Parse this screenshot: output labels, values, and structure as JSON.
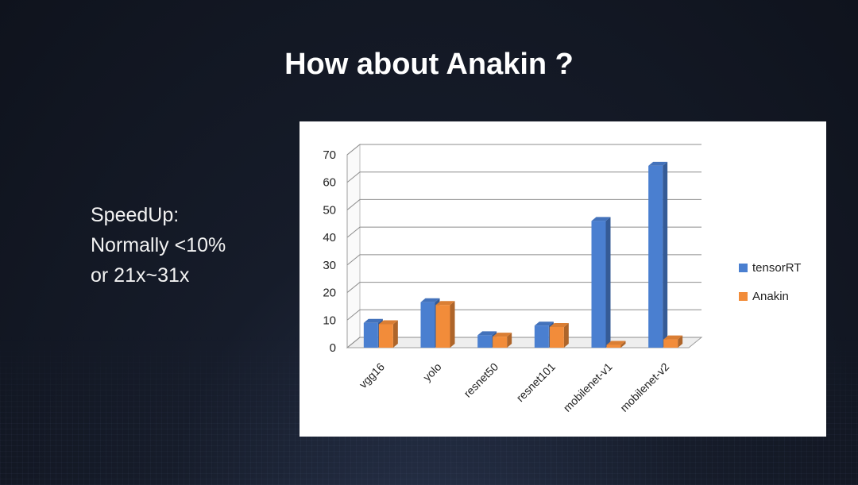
{
  "slide": {
    "title": "How about Anakin ?",
    "notes": [
      "SpeedUp:",
      "Normally <10%",
      "or 21x~31x"
    ]
  },
  "colors": {
    "tensorRT": "#4a7fd0",
    "Anakin": "#f28c3a"
  },
  "chart_data": {
    "type": "bar",
    "categories": [
      "vgg16",
      "yolo",
      "resnet50",
      "resnet101",
      "mobilenet-v1",
      "mobilenet-v2"
    ],
    "series": [
      {
        "name": "tensorRT",
        "values": [
          9,
          16.5,
          4.5,
          8,
          46,
          66
        ]
      },
      {
        "name": "Anakin",
        "values": [
          8.5,
          15.5,
          4,
          7.5,
          1,
          3
        ]
      }
    ],
    "ylim": [
      0,
      70
    ],
    "yticks": [
      "0",
      "10",
      "20",
      "30",
      "40",
      "50",
      "60",
      "70"
    ],
    "grid": true,
    "legend": "right"
  }
}
